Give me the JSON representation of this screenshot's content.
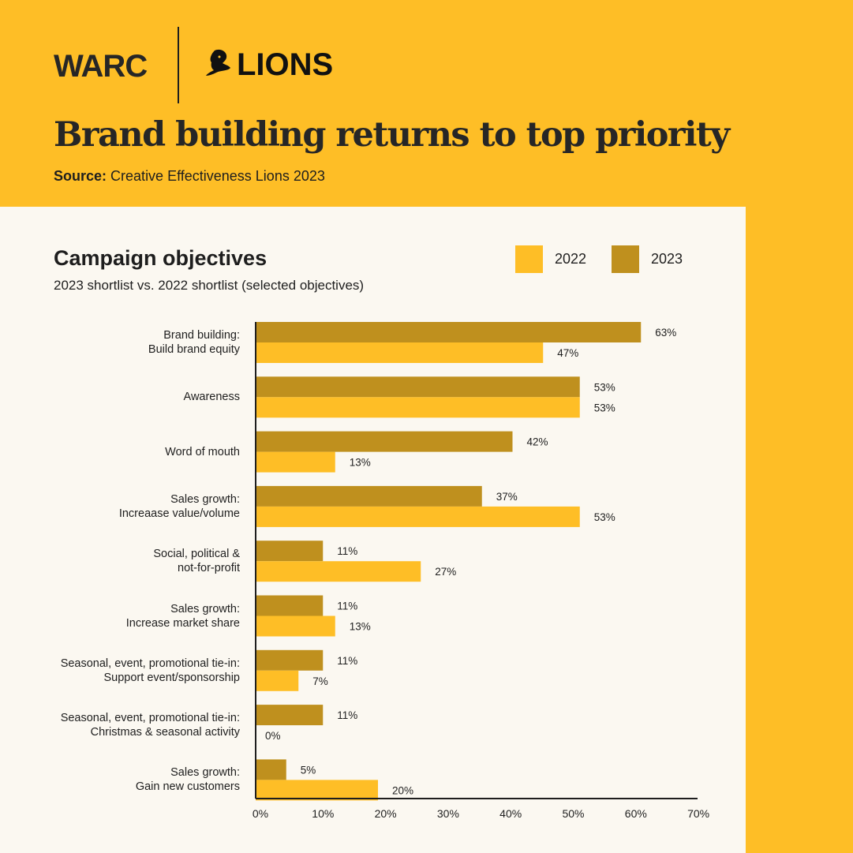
{
  "header": {
    "logo_warc": "WARC",
    "logo_lions": "LIONS",
    "title": "Brand building returns to top priority",
    "source_label": "Source:",
    "source_text": "Creative Effectiveness Lions 2023"
  },
  "colors": {
    "y2022": "#FEBE26",
    "y2023": "#BF901E"
  },
  "chart_data": {
    "type": "bar",
    "orientation": "horizontal",
    "title": "Campaign objectives",
    "subtitle": "2023 shortlist vs. 2022 shortlist (selected objectives)",
    "legend": [
      "2022",
      "2023"
    ],
    "legend_position": "top-right",
    "categories": [
      [
        "Brand building:",
        "Build brand equity"
      ],
      [
        "Awareness"
      ],
      [
        "Word of mouth"
      ],
      [
        "Sales growth:",
        "Increaase value/volume"
      ],
      [
        "Social, political &",
        "not-for-profit"
      ],
      [
        "Sales growth:",
        "Increase market share"
      ],
      [
        "Seasonal, event, promotional tie-in:",
        "Support event/sponsorship"
      ],
      [
        "Seasonal, event, promotional tie-in:",
        "Christmas & seasonal activity"
      ],
      [
        "Sales growth:",
        "Gain new customers"
      ]
    ],
    "series": [
      {
        "name": "2023",
        "values": [
          63,
          53,
          42,
          37,
          11,
          11,
          11,
          11,
          5
        ],
        "labels": [
          "63%",
          "53%",
          "42%",
          "37%",
          "11%",
          "11%",
          "11%",
          "11%",
          "5%"
        ]
      },
      {
        "name": "2022",
        "values": [
          47,
          53,
          13,
          53,
          27,
          13,
          7,
          0,
          20
        ],
        "labels": [
          "47%",
          "53%",
          "13%",
          "53%",
          "27%",
          "13%",
          "7%",
          "0%",
          "20%"
        ]
      }
    ],
    "xlim": [
      0,
      70
    ],
    "xticks": [
      "0%",
      "10%",
      "20%",
      "30%",
      "40%",
      "50%",
      "60%",
      "70%"
    ]
  }
}
